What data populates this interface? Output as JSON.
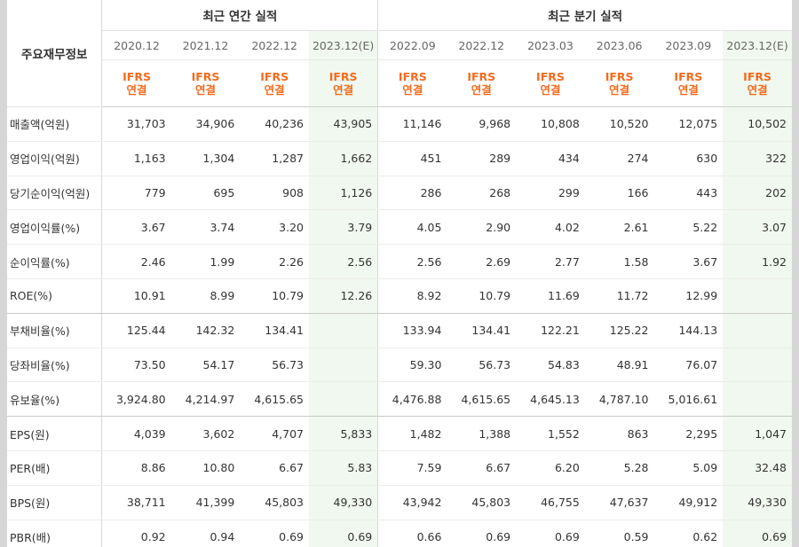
{
  "table": {
    "row_header_title": "주요재무정보",
    "groups": [
      {
        "title": "최근 연간 실적"
      },
      {
        "title": "최근 분기 실적"
      }
    ],
    "columns": [
      {
        "period": "2020.12",
        "std_top": "IFRS",
        "std_bottom": "연결"
      },
      {
        "period": "2021.12",
        "std_top": "IFRS",
        "std_bottom": "연결"
      },
      {
        "period": "2022.12",
        "std_top": "IFRS",
        "std_bottom": "연결"
      },
      {
        "period": "2023.12(E)",
        "std_top": "IFRS",
        "std_bottom": "연결"
      },
      {
        "period": "2022.09",
        "std_top": "IFRS",
        "std_bottom": "연결"
      },
      {
        "period": "2022.12",
        "std_top": "IFRS",
        "std_bottom": "연결"
      },
      {
        "period": "2023.03",
        "std_top": "IFRS",
        "std_bottom": "연결"
      },
      {
        "period": "2023.06",
        "std_top": "IFRS",
        "std_bottom": "연결"
      },
      {
        "period": "2023.09",
        "std_top": "IFRS",
        "std_bottom": "연결"
      },
      {
        "period": "2023.12(E)",
        "std_top": "IFRS",
        "std_bottom": "연결"
      }
    ],
    "rows": [
      {
        "label": "매출액(억원)",
        "values": [
          "31,703",
          "34,906",
          "40,236",
          "43,905",
          "11,146",
          "9,968",
          "10,808",
          "10,520",
          "12,075",
          "10,502"
        ]
      },
      {
        "label": "영업이익(억원)",
        "values": [
          "1,163",
          "1,304",
          "1,287",
          "1,662",
          "451",
          "289",
          "434",
          "274",
          "630",
          "322"
        ]
      },
      {
        "label": "당기순이익(억원)",
        "values": [
          "779",
          "695",
          "908",
          "1,126",
          "286",
          "268",
          "299",
          "166",
          "443",
          "202"
        ]
      },
      {
        "label": "영업이익률(%)",
        "values": [
          "3.67",
          "3.74",
          "3.20",
          "3.79",
          "4.05",
          "2.90",
          "4.02",
          "2.61",
          "5.22",
          "3.07"
        ]
      },
      {
        "label": "순이익률(%)",
        "values": [
          "2.46",
          "1.99",
          "2.26",
          "2.56",
          "2.56",
          "2.69",
          "2.77",
          "1.58",
          "3.67",
          "1.92"
        ]
      },
      {
        "label": "ROE(%)",
        "values": [
          "10.91",
          "8.99",
          "10.79",
          "12.26",
          "8.92",
          "10.79",
          "11.69",
          "11.72",
          "12.99",
          ""
        ]
      },
      {
        "label": "부채비율(%)",
        "values": [
          "125.44",
          "142.32",
          "134.41",
          "",
          "133.94",
          "134.41",
          "122.21",
          "125.22",
          "144.13",
          ""
        ]
      },
      {
        "label": "당좌비율(%)",
        "values": [
          "73.50",
          "54.17",
          "56.73",
          "",
          "59.30",
          "56.73",
          "54.83",
          "48.91",
          "76.07",
          ""
        ]
      },
      {
        "label": "유보율(%)",
        "values": [
          "3,924.80",
          "4,214.97",
          "4,615.65",
          "",
          "4,476.88",
          "4,615.65",
          "4,645.13",
          "4,787.10",
          "5,016.61",
          ""
        ]
      },
      {
        "label": "EPS(원)",
        "values": [
          "4,039",
          "3,602",
          "4,707",
          "5,833",
          "1,482",
          "1,388",
          "1,552",
          "863",
          "2,295",
          "1,047"
        ]
      },
      {
        "label": "PER(배)",
        "values": [
          "8.86",
          "10.80",
          "6.67",
          "5.83",
          "7.59",
          "6.67",
          "6.20",
          "5.28",
          "5.09",
          "32.48"
        ]
      },
      {
        "label": "BPS(원)",
        "values": [
          "38,711",
          "41,399",
          "45,803",
          "49,330",
          "43,942",
          "45,803",
          "46,755",
          "47,637",
          "49,912",
          "49,330"
        ]
      },
      {
        "label": "PBR(배)",
        "values": [
          "0.92",
          "0.94",
          "0.69",
          "0.69",
          "0.66",
          "0.69",
          "0.69",
          "0.59",
          "0.62",
          "0.69"
        ]
      }
    ],
    "colors": {
      "ifrs_text": "#f26b1d",
      "estimate_bg": "#f1f8ef",
      "border": "#d8d8d8"
    }
  }
}
